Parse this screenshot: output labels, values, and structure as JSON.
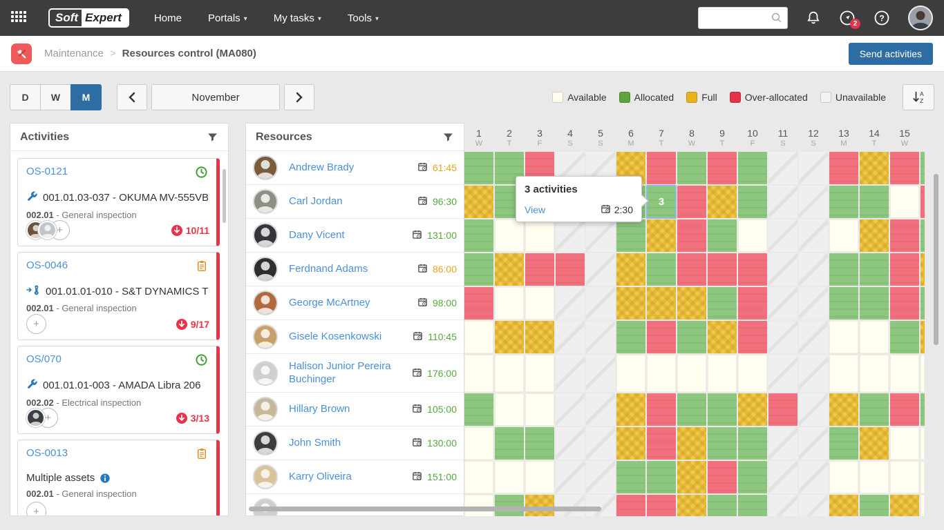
{
  "navbar": {
    "logo_part1": "Soft",
    "logo_part2": "Expert",
    "items": [
      {
        "label": "Home",
        "dropdown": false
      },
      {
        "label": "Portals",
        "dropdown": true
      },
      {
        "label": "My tasks",
        "dropdown": true
      },
      {
        "label": "Tools",
        "dropdown": true
      }
    ],
    "search_value": "",
    "search_placeholder": "",
    "news_badge": "2"
  },
  "breadcrumb": {
    "section": "Maintenance",
    "separator": ">",
    "page": "Resources control (MA080)"
  },
  "actions": {
    "send_activities": "Send activities"
  },
  "toolbar": {
    "view_modes": [
      {
        "label": "D",
        "active": false
      },
      {
        "label": "W",
        "active": false
      },
      {
        "label": "M",
        "active": true
      }
    ],
    "month": "November"
  },
  "legend": [
    {
      "label": "Available",
      "color": "#fffdec"
    },
    {
      "label": "Allocated",
      "color": "#5fa33e"
    },
    {
      "label": "Full",
      "color": "#e9b11c"
    },
    {
      "label": "Over-allocated",
      "color": "#e43348"
    },
    {
      "label": "Unavailable",
      "color": "#f2f2f2"
    }
  ],
  "activities": {
    "title": "Activities",
    "cards": [
      {
        "id": "OS-0121",
        "status_icon": "clock",
        "asset_icon": "wrench",
        "asset": "001.01.03-037 - OKUMA MV-555VB",
        "info_icon": false,
        "task_code": "002.01",
        "task_name": "General inspection",
        "avatar_colors": [
          "#6b5342",
          "#c2c6ca"
        ],
        "progress": "10/11"
      },
      {
        "id": "OS-0046",
        "status_icon": "clipboard",
        "asset_icon": "wrench-transfer",
        "asset": "001.01.01-010 - S&T DYNAMICS T...",
        "info_icon": false,
        "task_code": "002.01",
        "task_name": "General inspection",
        "avatar_colors": [],
        "progress": "9/17"
      },
      {
        "id": "OS/070",
        "status_icon": "clock",
        "asset_icon": "wrench",
        "asset": "001.01.01-003 - AMADA Libra 206",
        "info_icon": false,
        "task_code": "002.02",
        "task_name": "Electrical inspection",
        "avatar_colors": [
          "#3a3f46"
        ],
        "progress": "3/13"
      },
      {
        "id": "OS-0013",
        "status_icon": "clipboard",
        "asset_icon": null,
        "asset": "Multiple assets",
        "info_icon": true,
        "task_code": "002.01",
        "task_name": "General inspection",
        "avatar_colors": [],
        "progress": null
      }
    ]
  },
  "resources": {
    "title": "Resources",
    "rows": [
      {
        "name": "Andrew Brady",
        "hours": "61:45",
        "hours_color": "#e8a21a",
        "avatar_bg": "#7a5c3e",
        "cells": "ggouufogoguuofo",
        "sliver": "g"
      },
      {
        "name": "Carl Jordan",
        "hours": "96:30",
        "hours_color": "#56a83c",
        "avatar_bg": "#8e8e84",
        "cells": "fgauuggofguugga",
        "sliver": "o"
      },
      {
        "name": "Dany Vicent",
        "hours": "131:00",
        "hours_color": "#56a83c",
        "avatar_bg": "#35363c",
        "cells": "gaauugfogauuafo",
        "sliver": "g"
      },
      {
        "name": "Ferdnand Adams",
        "hours": "86:00",
        "hours_color": "#e8a21a",
        "avatar_bg": "#2f2f2f",
        "cells": "gfooufgooouuggo",
        "sliver": "f"
      },
      {
        "name": "George McArtney",
        "hours": "98:00",
        "hours_color": "#56a83c",
        "avatar_bg": "#b06a3c",
        "cells": "oaauufffgouuggo",
        "sliver": "g"
      },
      {
        "name": "Gisele Kosenkowski",
        "hours": "110:45",
        "hours_color": "#56a83c",
        "avatar_bg": "#c9a06a",
        "cells": "affuugogfouuaag",
        "sliver": "f"
      },
      {
        "name": "Halison Junior Pereira Buchinger",
        "hours": "176:00",
        "hours_color": "#56a83c",
        "avatar_bg": "#cfcfcf",
        "cells": "aaauuaaaaauuaaa",
        "sliver": "a"
      },
      {
        "name": "Hillary Brown",
        "hours": "105:00",
        "hours_color": "#56a83c",
        "avatar_bg": "#c8b89a",
        "cells": "gaauufoggfoufgo",
        "sliver": "g"
      },
      {
        "name": "John Smith",
        "hours": "130:00",
        "hours_color": "#56a83c",
        "avatar_bg": "#3d3d3d",
        "cells": "agguufofgguugfa",
        "sliver": "a"
      },
      {
        "name": "Karry Oliveira",
        "hours": "151:00",
        "hours_color": "#56a83c",
        "avatar_bg": "#d8c49a",
        "cells": "aaauuggfoguuaaa",
        "sliver": "a"
      },
      {
        "name": "",
        "hours": "",
        "hours_color": "",
        "avatar_bg": "#cfcfcf",
        "cells": "agfuuoofgguufgf",
        "sliver": "a"
      }
    ]
  },
  "calendar": {
    "days": [
      {
        "num": "1",
        "dow": "W"
      },
      {
        "num": "2",
        "dow": "T"
      },
      {
        "num": "3",
        "dow": "F"
      },
      {
        "num": "4",
        "dow": "S"
      },
      {
        "num": "5",
        "dow": "S"
      },
      {
        "num": "6",
        "dow": "M"
      },
      {
        "num": "7",
        "dow": "T"
      },
      {
        "num": "8",
        "dow": "W"
      },
      {
        "num": "9",
        "dow": "T"
      },
      {
        "num": "10",
        "dow": "F"
      },
      {
        "num": "11",
        "dow": "S"
      },
      {
        "num": "12",
        "dow": "S"
      },
      {
        "num": "13",
        "dow": "M"
      },
      {
        "num": "14",
        "dow": "T"
      },
      {
        "num": "15",
        "dow": "W"
      }
    ],
    "status_names": {
      "a": "Available",
      "g": "Allocated",
      "f": "Full",
      "o": "Over-allocated",
      "u": "Unavailable"
    }
  },
  "tooltip": {
    "title": "3 activities",
    "link": "View",
    "duration": "2:30"
  },
  "selected_cell": {
    "row": 1,
    "col": 6,
    "count": "3"
  },
  "colors": {
    "accent": "#2e6da4",
    "over_allocated": "#e8344a",
    "link": "#4a90d9"
  }
}
